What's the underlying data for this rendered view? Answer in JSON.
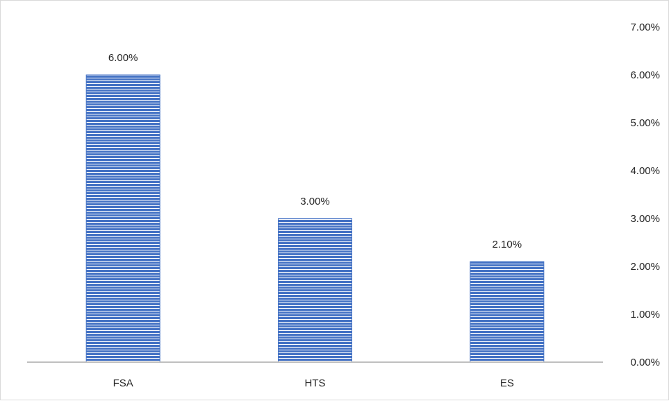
{
  "chart_data": {
    "type": "bar",
    "categories": [
      "FSA",
      "HTS",
      "ES"
    ],
    "values": [
      6.0,
      3.0,
      2.1
    ],
    "data_labels": [
      "6.00%",
      "3.00%",
      "2.10%"
    ],
    "ylim": [
      0,
      7
    ],
    "y_ticks": [
      "0.00%",
      "1.00%",
      "2.00%",
      "3.00%",
      "4.00%",
      "5.00%",
      "6.00%",
      "7.00%"
    ],
    "y_axis_position": "right",
    "grid": false,
    "legend": "none",
    "bar_color": "#4472c4",
    "bar_pattern": "horizontal-stripes"
  }
}
